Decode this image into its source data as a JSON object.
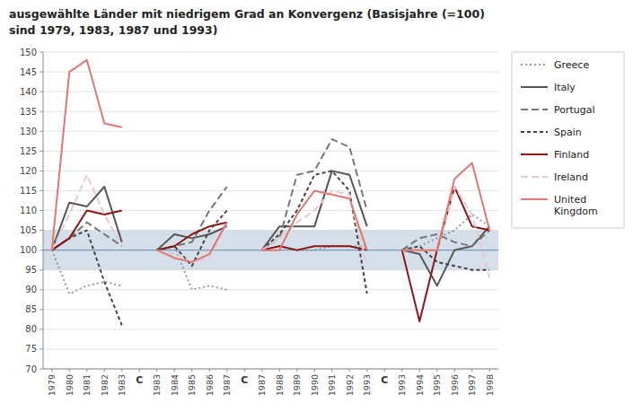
{
  "chart_data": {
    "type": "line",
    "title": "ausgewählte Länder mit niedrigem Grad an Konvergenz (Basisjahre (=100)",
    "subtitle": "sind 1979, 1983, 1987 und 1993)",
    "categories": [
      "1979",
      "1980",
      "1981",
      "1982",
      "1983",
      "C",
      "1983",
      "1984",
      "1985",
      "1986",
      "1987",
      "C",
      "1987",
      "1988",
      "1989",
      "1990",
      "1991",
      "1992",
      "1993",
      "C",
      "1993",
      "1994",
      "1995",
      "1996",
      "1997",
      "1998"
    ],
    "ylim": [
      70,
      150
    ],
    "yticks": [
      70,
      75,
      80,
      85,
      90,
      95,
      100,
      105,
      110,
      115,
      120,
      125,
      130,
      135,
      140,
      145,
      150
    ],
    "grid": true,
    "legend": "right",
    "band": {
      "ymin": 95,
      "ymax": 105,
      "color": "#b0c4d8"
    },
    "reference_line": {
      "y": 100,
      "color": "#7a9ab8"
    },
    "series": [
      {
        "name": "Greece",
        "color": "#999999",
        "line_style": "dotted",
        "values": [
          100,
          89,
          91,
          92,
          91,
          null,
          100,
          101,
          90,
          91,
          90,
          null,
          100,
          101,
          100,
          100,
          101,
          101,
          101,
          null,
          100,
          101,
          103,
          105,
          109,
          106
        ]
      },
      {
        "name": "Italy",
        "color": "#555555",
        "line_style": "solid",
        "values": [
          100,
          112,
          111,
          116,
          102,
          null,
          100,
          104,
          103,
          104,
          106,
          null,
          100,
          106,
          106,
          106,
          120,
          119,
          106,
          null,
          100,
          99,
          91,
          100,
          101,
          106
        ]
      },
      {
        "name": "Portugal",
        "color": "#777777",
        "line_style": "longdash",
        "values": [
          100,
          103,
          107,
          104,
          101,
          null,
          100,
          101,
          102,
          110,
          116,
          null,
          100,
          103,
          119,
          120,
          128,
          126,
          110,
          null,
          100,
          103,
          104,
          102,
          101,
          105
        ]
      },
      {
        "name": "Spain",
        "color": "#444444",
        "line_style": "shortdash",
        "values": [
          100,
          103,
          105,
          92,
          81,
          null,
          100,
          101,
          96,
          105,
          110,
          null,
          100,
          104,
          110,
          119,
          120,
          115,
          89,
          null,
          100,
          101,
          97,
          96,
          95,
          95
        ]
      },
      {
        "name": "Finland",
        "color": "#8b1515",
        "line_style": "solid",
        "values": [
          100,
          103,
          110,
          109,
          110,
          null,
          100,
          101,
          104,
          106,
          107,
          null,
          100,
          101,
          100,
          101,
          101,
          101,
          100,
          null,
          100,
          82,
          100,
          116,
          106,
          105
        ]
      },
      {
        "name": "Ireland",
        "color": "#e8c8d0",
        "line_style": "longdash",
        "values": [
          100,
          109,
          119,
          109,
          101,
          null,
          100,
          99,
          97,
          98,
          107,
          null,
          100,
          103,
          107,
          110,
          115,
          114,
          96,
          null,
          100,
          100,
          100,
          116,
          109,
          93
        ]
      },
      {
        "name": "United\nKingdom",
        "color": "#e07870",
        "line_style": "solid",
        "values": [
          100,
          145,
          148,
          132,
          131,
          null,
          100,
          98,
          97,
          99,
          107,
          null,
          100,
          100,
          109,
          115,
          114,
          113,
          100,
          null,
          100,
          100,
          100,
          118,
          122,
          105
        ]
      }
    ]
  }
}
